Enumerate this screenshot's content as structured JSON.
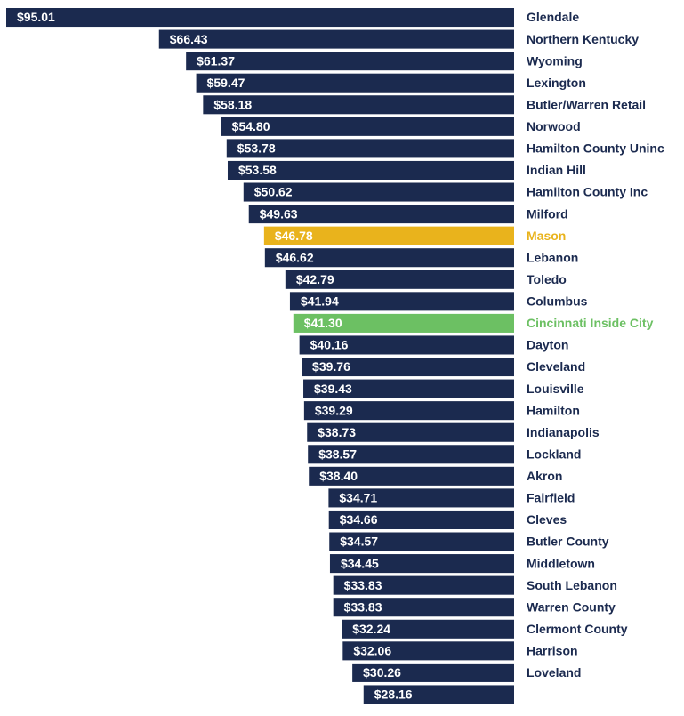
{
  "chart_data": {
    "type": "bar",
    "orientation": "horizontal",
    "categories": [
      "Glendale",
      "Northern Kentucky",
      "Wyoming",
      "Lexington",
      "Butler/Warren Retail",
      "Norwood",
      "Hamilton County Uninc",
      "Indian Hill",
      "Hamilton County Inc",
      "Milford",
      "Mason",
      "Lebanon",
      "Toledo",
      "Columbus",
      "Cincinnati Inside City",
      "Dayton",
      "Cleveland",
      "Louisville",
      "Hamilton",
      "Indianapolis",
      "Lockland",
      "Akron",
      "Fairfield",
      "Cleves",
      "Butler County",
      "Middletown",
      "South Lebanon",
      "Warren County",
      "Clermont County",
      "Harrison",
      "Loveland",
      null
    ],
    "values": [
      95.01,
      66.43,
      61.37,
      59.47,
      58.18,
      54.8,
      53.78,
      53.58,
      50.62,
      49.63,
      46.78,
      46.62,
      42.79,
      41.94,
      41.3,
      40.16,
      39.76,
      39.43,
      39.29,
      38.73,
      38.57,
      38.4,
      34.71,
      34.66,
      34.57,
      34.45,
      33.83,
      33.83,
      32.24,
      32.06,
      30.26,
      28.16
    ],
    "value_labels": [
      "$95.01",
      "$66.43",
      "$61.37",
      "$59.47",
      "$58.18",
      "$54.80",
      "$53.78",
      "$53.58",
      "$50.62",
      "$49.63",
      "$46.78",
      "$46.62",
      "$42.79",
      "$41.94",
      "$41.30",
      "$40.16",
      "$39.76",
      "$39.43",
      "$39.29",
      "$38.73",
      "$38.57",
      "$38.40",
      "$34.71",
      "$34.66",
      "$34.57",
      "$34.45",
      "$33.83",
      "$33.83",
      "$32.24",
      "$32.06",
      "$30.26",
      "$28.16"
    ],
    "colors": [
      "#1b2a4f",
      "#1b2a4f",
      "#1b2a4f",
      "#1b2a4f",
      "#1b2a4f",
      "#1b2a4f",
      "#1b2a4f",
      "#1b2a4f",
      "#1b2a4f",
      "#1b2a4f",
      "#e9b31c",
      "#1b2a4f",
      "#1b2a4f",
      "#1b2a4f",
      "#6cc063",
      "#1b2a4f",
      "#1b2a4f",
      "#1b2a4f",
      "#1b2a4f",
      "#1b2a4f",
      "#1b2a4f",
      "#1b2a4f",
      "#1b2a4f",
      "#1b2a4f",
      "#1b2a4f",
      "#1b2a4f",
      "#1b2a4f",
      "#1b2a4f",
      "#1b2a4f",
      "#1b2a4f",
      "#1b2a4f",
      "#1b2a4f"
    ]
  }
}
